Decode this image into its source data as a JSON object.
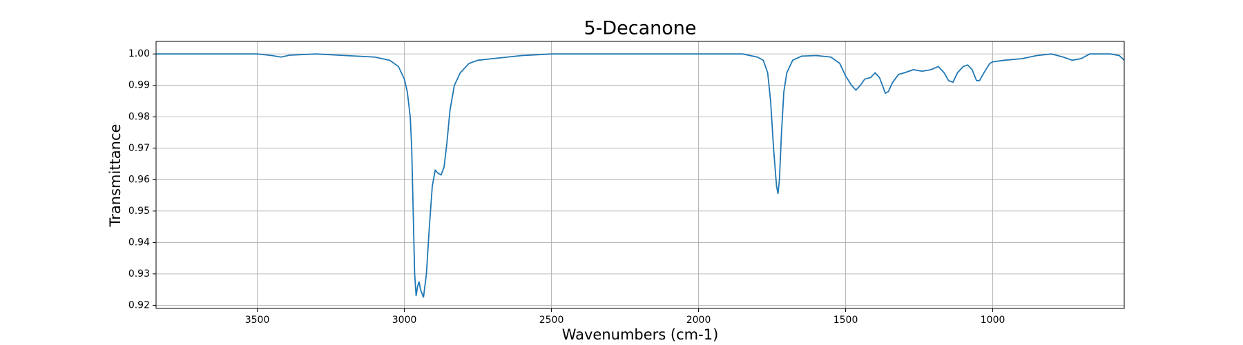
{
  "chart_data": {
    "type": "line",
    "title": "5-Decanone",
    "x_label": "Wavenumbers (cm-1)",
    "y_label": "Transmittance",
    "x": [
      3844,
      3700,
      3500,
      3450,
      3420,
      3390,
      3300,
      3200,
      3100,
      3050,
      3020,
      3000,
      2990,
      2980,
      2975,
      2970,
      2965,
      2960,
      2955,
      2950,
      2945,
      2935,
      2925,
      2915,
      2905,
      2895,
      2885,
      2875,
      2865,
      2855,
      2845,
      2830,
      2810,
      2780,
      2750,
      2700,
      2650,
      2600,
      2500,
      2200,
      2000,
      1850,
      1800,
      1780,
      1765,
      1755,
      1745,
      1735,
      1730,
      1725,
      1718,
      1710,
      1700,
      1680,
      1650,
      1600,
      1550,
      1520,
      1500,
      1480,
      1465,
      1450,
      1435,
      1415,
      1400,
      1385,
      1375,
      1365,
      1355,
      1340,
      1320,
      1300,
      1270,
      1240,
      1210,
      1185,
      1165,
      1150,
      1135,
      1120,
      1100,
      1085,
      1070,
      1055,
      1045,
      1030,
      1010,
      1000,
      960,
      900,
      850,
      800,
      760,
      730,
      700,
      670,
      640,
      600,
      570,
      553
    ],
    "values": [
      1.0,
      1.0,
      1.0,
      0.9995,
      0.999,
      0.9996,
      1.0,
      0.9995,
      0.999,
      0.998,
      0.996,
      0.992,
      0.988,
      0.98,
      0.97,
      0.95,
      0.93,
      0.923,
      0.926,
      0.9275,
      0.925,
      0.9225,
      0.93,
      0.945,
      0.958,
      0.963,
      0.962,
      0.9615,
      0.964,
      0.972,
      0.982,
      0.99,
      0.994,
      0.997,
      0.998,
      0.9985,
      0.999,
      0.9995,
      1.0,
      1.0,
      1.0,
      1.0,
      0.999,
      0.998,
      0.994,
      0.985,
      0.97,
      0.958,
      0.9555,
      0.96,
      0.975,
      0.988,
      0.994,
      0.998,
      0.9993,
      0.9995,
      0.999,
      0.997,
      0.993,
      0.99,
      0.9885,
      0.99,
      0.992,
      0.9925,
      0.994,
      0.9925,
      0.99,
      0.9875,
      0.988,
      0.991,
      0.9935,
      0.994,
      0.995,
      0.9945,
      0.995,
      0.996,
      0.994,
      0.9915,
      0.991,
      0.994,
      0.996,
      0.9965,
      0.995,
      0.9915,
      0.9915,
      0.994,
      0.997,
      0.9975,
      0.998,
      0.9985,
      0.9995,
      1.0,
      0.999,
      0.998,
      0.9985,
      1.0,
      1.0,
      1.0,
      0.9995,
      0.998
    ],
    "color": "#1f77b4",
    "xlim": [
      3844,
      553
    ],
    "ylim": [
      0.919,
      1.004
    ],
    "xticks": [
      3500,
      3000,
      2500,
      2000,
      1500,
      1000
    ],
    "yticks": [
      0.92,
      0.93,
      0.94,
      0.95,
      0.96,
      0.97,
      0.98,
      0.99,
      {
        "value": 1,
        "label": "1.00"
      }
    ],
    "grid": true
  }
}
